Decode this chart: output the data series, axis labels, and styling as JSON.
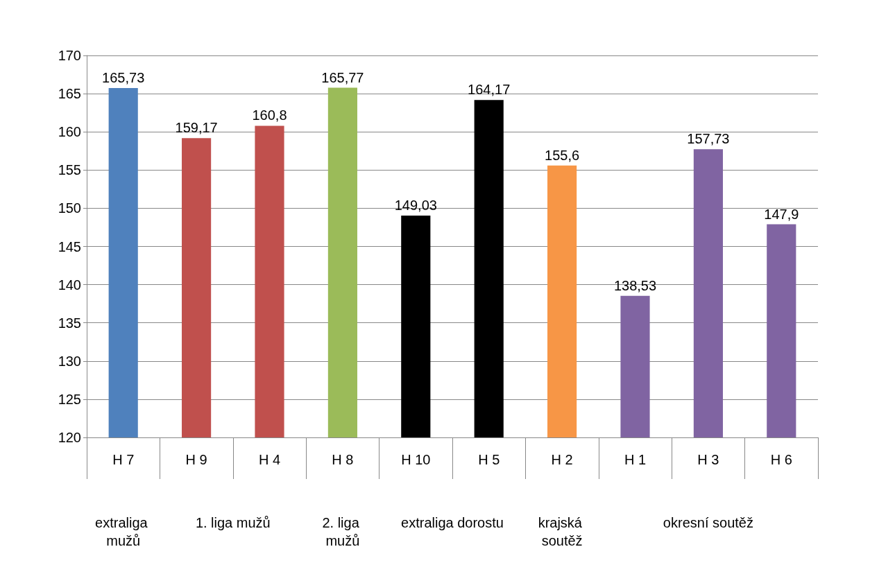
{
  "chart_data": {
    "type": "bar",
    "categories": [
      "H 7",
      "H 9",
      "H 4",
      "H 8",
      "H 10",
      "H 5",
      "H 2",
      "H 1",
      "H 3",
      "H 6"
    ],
    "values": [
      165.73,
      159.17,
      160.8,
      165.77,
      149.03,
      164.17,
      155.6,
      138.53,
      157.73,
      147.9
    ],
    "colors": [
      "#4f81bd",
      "#c0504d",
      "#c0504d",
      "#9bbb59",
      "#000000",
      "#000000",
      "#f79646",
      "#8064a2",
      "#8064a2",
      "#8064a2"
    ],
    "value_labels": [
      "165,73",
      "159,17",
      "160,8",
      "165,77",
      "149,03",
      "164,17",
      "155,6",
      "138,53",
      "157,73",
      "147,9"
    ],
    "ylim": [
      120,
      170
    ],
    "yticks": [
      120,
      125,
      130,
      135,
      140,
      145,
      150,
      155,
      160,
      165,
      170
    ],
    "grid": "y",
    "annotations": [
      "extraliga mužů",
      "1. liga mužů",
      "2. liga mužů",
      "extraliga dorostu",
      "krajská soutěž",
      "okresní soutěž"
    ]
  }
}
